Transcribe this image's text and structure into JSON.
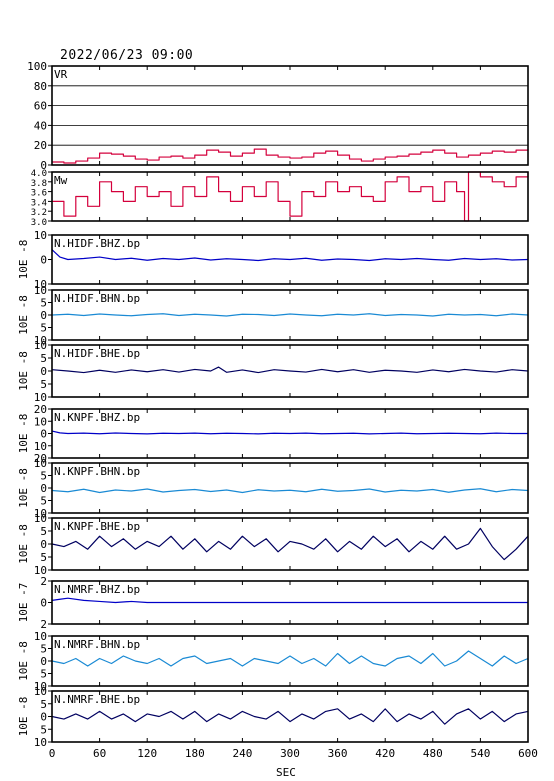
{
  "header": {
    "title": "2022/06/23 09:00"
  },
  "xaxis": {
    "label": "SEC",
    "ticks": [
      "0",
      "60",
      "120",
      "180",
      "240",
      "300",
      "360",
      "420",
      "480",
      "540",
      "600"
    ],
    "range": [
      0,
      600
    ]
  },
  "colors": {
    "red": "#d4003c",
    "blue": "#0000c8",
    "lightblue": "#1a8ad4",
    "navy": "#000060"
  },
  "chart_data": [
    {
      "type": "line",
      "id": "vr",
      "title": "VR",
      "ylim": [
        0,
        100
      ],
      "yticks": [
        0,
        20,
        40,
        60,
        80,
        100
      ],
      "ytick_labels": [
        "0",
        "20",
        "40",
        "60",
        "80",
        "100"
      ],
      "grid": true,
      "color": "#d4003c",
      "x": [
        0,
        15,
        30,
        45,
        60,
        75,
        90,
        105,
        120,
        135,
        150,
        165,
        180,
        195,
        210,
        225,
        240,
        255,
        270,
        285,
        300,
        315,
        330,
        345,
        360,
        375,
        390,
        405,
        420,
        435,
        450,
        465,
        480,
        495,
        510,
        525,
        540,
        555,
        570,
        585,
        600
      ],
      "values": [
        3,
        2,
        4,
        7,
        12,
        11,
        9,
        6,
        5,
        8,
        9,
        7,
        10,
        15,
        13,
        9,
        12,
        16,
        10,
        8,
        7,
        8,
        12,
        14,
        10,
        6,
        4,
        6,
        8,
        9,
        11,
        13,
        15,
        12,
        8,
        10,
        12,
        14,
        13,
        15,
        16
      ]
    },
    {
      "type": "line",
      "id": "mw",
      "title": "Mw",
      "ylim": [
        3.0,
        4.0
      ],
      "yticks": [
        3.0,
        3.2,
        3.4,
        3.6,
        3.8,
        4.0
      ],
      "ytick_labels": [
        "3.0",
        "3.2",
        "3.4",
        "3.6",
        "3.8",
        "4.0"
      ],
      "grid": false,
      "color": "#d4003c",
      "x": [
        0,
        15,
        30,
        45,
        60,
        75,
        90,
        105,
        120,
        135,
        150,
        165,
        180,
        195,
        210,
        225,
        240,
        255,
        270,
        285,
        300,
        315,
        330,
        345,
        360,
        375,
        390,
        405,
        420,
        435,
        450,
        465,
        480,
        495,
        510,
        520,
        525,
        540,
        555,
        570,
        585,
        600
      ],
      "values": [
        3.4,
        3.1,
        3.5,
        3.3,
        3.8,
        3.6,
        3.4,
        3.7,
        3.5,
        3.6,
        3.3,
        3.7,
        3.5,
        3.9,
        3.6,
        3.4,
        3.7,
        3.5,
        3.8,
        3.4,
        3.1,
        3.6,
        3.5,
        3.8,
        3.6,
        3.7,
        3.5,
        3.4,
        3.8,
        3.9,
        3.6,
        3.7,
        3.4,
        3.8,
        3.6,
        3.0,
        4.0,
        3.9,
        3.8,
        3.7,
        3.9,
        4.0
      ]
    },
    {
      "type": "line",
      "id": "hidf_bhz",
      "title": "N.HIDF.BHZ.bp",
      "ylabel": "10E -8",
      "ylim": [
        -10,
        10
      ],
      "yticks": [
        -10,
        0,
        10
      ],
      "ytick_labels": [
        "10",
        "0",
        "10"
      ],
      "color": "#0000c8",
      "x": [
        0,
        10,
        20,
        40,
        60,
        80,
        100,
        120,
        140,
        160,
        180,
        200,
        220,
        240,
        260,
        280,
        300,
        320,
        340,
        360,
        380,
        400,
        420,
        440,
        460,
        480,
        500,
        520,
        540,
        560,
        580,
        600
      ],
      "values": [
        4,
        1,
        0,
        0.4,
        1,
        0,
        0.5,
        -0.3,
        0.4,
        0,
        0.6,
        -0.2,
        0.3,
        0,
        -0.4,
        0.3,
        0,
        0.5,
        -0.3,
        0.2,
        0,
        -0.4,
        0.3,
        0,
        0.4,
        0,
        -0.3,
        0.4,
        0,
        0.3,
        -0.2,
        0
      ]
    },
    {
      "type": "line",
      "id": "hidf_bhn",
      "title": "N.HIDF.BHN.bp",
      "ylabel": "10E -8",
      "ylim": [
        -10,
        10
      ],
      "yticks": [
        -10,
        -5,
        0,
        5,
        10
      ],
      "ytick_labels": [
        "10",
        "5",
        "0",
        "5",
        "10"
      ],
      "color": "#1a8ad4",
      "x": [
        0,
        20,
        40,
        60,
        80,
        100,
        120,
        140,
        160,
        180,
        200,
        220,
        240,
        260,
        280,
        300,
        320,
        340,
        360,
        380,
        400,
        420,
        440,
        460,
        480,
        500,
        520,
        540,
        560,
        580,
        600
      ],
      "values": [
        0,
        0.3,
        -0.2,
        0.4,
        0,
        -0.3,
        0.2,
        0.5,
        -0.2,
        0.3,
        0,
        -0.4,
        0.3,
        0.2,
        -0.2,
        0.4,
        0,
        -0.3,
        0.3,
        0,
        0.5,
        -0.2,
        0.2,
        0,
        -0.4,
        0.3,
        0,
        0.2,
        -0.3,
        0.4,
        0
      ]
    },
    {
      "type": "line",
      "id": "hidf_bhe",
      "title": "N.HIDF.BHE.bp",
      "ylabel": "10E -8",
      "ylim": [
        -10,
        10
      ],
      "yticks": [
        -10,
        -5,
        0,
        5,
        10
      ],
      "ytick_labels": [
        "10",
        "5",
        "0",
        "5",
        "10"
      ],
      "color": "#000060",
      "x": [
        0,
        20,
        40,
        60,
        80,
        100,
        120,
        140,
        160,
        180,
        200,
        210,
        220,
        240,
        260,
        280,
        300,
        320,
        340,
        360,
        380,
        400,
        420,
        440,
        460,
        480,
        500,
        520,
        540,
        560,
        580,
        600
      ],
      "values": [
        0.5,
        0,
        -0.6,
        0.3,
        -0.5,
        0.4,
        -0.3,
        0.5,
        -0.4,
        0.6,
        0,
        1.5,
        -0.5,
        0.4,
        -0.6,
        0.5,
        0,
        -0.4,
        0.6,
        -0.3,
        0.5,
        -0.5,
        0.3,
        0,
        -0.5,
        0.4,
        -0.3,
        0.6,
        0,
        -0.4,
        0.5,
        0
      ]
    },
    {
      "type": "line",
      "id": "knpf_bhz",
      "title": "N.KNPF.BHZ.bp",
      "ylabel": "10E -8",
      "ylim": [
        -20,
        20
      ],
      "yticks": [
        -20,
        -10,
        0,
        10,
        20
      ],
      "ytick_labels": [
        "20",
        "10",
        "0",
        "10",
        "20"
      ],
      "color": "#0000c8",
      "x": [
        0,
        10,
        20,
        40,
        60,
        80,
        100,
        120,
        140,
        160,
        180,
        200,
        220,
        240,
        260,
        280,
        300,
        320,
        340,
        360,
        380,
        400,
        420,
        440,
        460,
        480,
        500,
        520,
        540,
        560,
        580,
        600
      ],
      "values": [
        2,
        0.5,
        0,
        0.3,
        -0.2,
        0.4,
        0,
        -0.3,
        0.2,
        0,
        0.3,
        -0.2,
        0.2,
        0,
        -0.3,
        0.2,
        0,
        0.3,
        -0.2,
        0,
        0.2,
        -0.3,
        0,
        0.3,
        -0.2,
        0,
        0.2,
        0,
        -0.2,
        0.3,
        0,
        0
      ]
    },
    {
      "type": "line",
      "id": "knpf_bhn",
      "title": "N.KNPF.BHN.bp",
      "ylabel": "10E -8",
      "ylim": [
        -10,
        10
      ],
      "yticks": [
        -10,
        -5,
        0,
        5,
        10
      ],
      "ytick_labels": [
        "10",
        "5",
        "0",
        "5",
        "10"
      ],
      "color": "#1a8ad4",
      "x": [
        0,
        20,
        40,
        60,
        80,
        100,
        120,
        140,
        160,
        180,
        200,
        220,
        240,
        260,
        280,
        300,
        320,
        340,
        360,
        380,
        400,
        420,
        440,
        460,
        480,
        500,
        520,
        540,
        560,
        580,
        600
      ],
      "values": [
        -1,
        -1.5,
        -0.5,
        -1.8,
        -0.8,
        -1.2,
        -0.4,
        -1.6,
        -1,
        -0.6,
        -1.4,
        -0.8,
        -1.8,
        -0.7,
        -1.2,
        -0.9,
        -1.5,
        -0.5,
        -1.3,
        -1,
        -0.4,
        -1.6,
        -0.9,
        -1.2,
        -0.6,
        -1.7,
        -0.8,
        -0.3,
        -1.5,
        -0.6,
        -1
      ]
    },
    {
      "type": "line",
      "id": "knpf_bhe",
      "title": "N.KNPF.BHE.bp",
      "ylabel": "10E -8",
      "ylim": [
        -10,
        10
      ],
      "yticks": [
        -10,
        -5,
        0,
        5,
        10
      ],
      "ytick_labels": [
        "10",
        "5",
        "0",
        "5",
        "10"
      ],
      "color": "#000060",
      "x": [
        0,
        15,
        30,
        45,
        60,
        75,
        90,
        105,
        120,
        135,
        150,
        165,
        180,
        195,
        210,
        225,
        240,
        255,
        270,
        285,
        300,
        315,
        330,
        345,
        360,
        375,
        390,
        405,
        420,
        435,
        450,
        465,
        480,
        495,
        510,
        525,
        540,
        555,
        570,
        585,
        600
      ],
      "values": [
        0,
        -1,
        1,
        -2,
        3,
        -1,
        2,
        -2,
        1,
        -1,
        3,
        -2,
        2,
        -3,
        1,
        -2,
        3,
        -1,
        2,
        -3,
        1,
        0,
        -2,
        2,
        -3,
        1,
        -2,
        3,
        -1,
        2,
        -3,
        1,
        -2,
        3,
        -2,
        0,
        6,
        -1,
        -6,
        -2,
        3
      ]
    },
    {
      "type": "line",
      "id": "nmrf_bhz",
      "title": "N.NMRF.BHZ.bp",
      "ylabel": "10E -7",
      "ylim": [
        -2,
        2
      ],
      "yticks": [
        -2,
        0,
        2
      ],
      "ytick_labels": [
        "2",
        "0",
        "2"
      ],
      "color": "#0000c8",
      "x": [
        0,
        10,
        20,
        40,
        60,
        80,
        100,
        120,
        140,
        160,
        180,
        200,
        220,
        240,
        260,
        280,
        300,
        320,
        340,
        360,
        380,
        400,
        420,
        440,
        460,
        480,
        500,
        520,
        540,
        560,
        580,
        600
      ],
      "values": [
        0.2,
        0.3,
        0.4,
        0.2,
        0.1,
        0,
        0.1,
        0,
        0,
        0,
        0,
        0,
        0,
        0,
        0,
        0,
        0,
        0,
        0,
        0,
        0,
        0,
        0,
        0,
        0,
        0,
        0,
        0,
        0,
        0,
        0,
        0
      ]
    },
    {
      "type": "line",
      "id": "nmrf_bhn",
      "title": "N.NMRF.BHN.bp",
      "ylabel": "10E -8",
      "ylim": [
        -10,
        10
      ],
      "yticks": [
        -10,
        -5,
        0,
        5,
        10
      ],
      "ytick_labels": [
        "10",
        "5",
        "0",
        "5",
        "10"
      ],
      "color": "#1a8ad4",
      "x": [
        0,
        15,
        30,
        45,
        60,
        75,
        90,
        105,
        120,
        135,
        150,
        165,
        180,
        195,
        210,
        225,
        240,
        255,
        270,
        285,
        300,
        315,
        330,
        345,
        360,
        375,
        390,
        405,
        420,
        435,
        450,
        465,
        480,
        495,
        510,
        525,
        540,
        555,
        570,
        585,
        600
      ],
      "values": [
        0,
        -1,
        1,
        -2,
        1,
        -1,
        2,
        0,
        -1,
        1,
        -2,
        1,
        2,
        -1,
        0,
        1,
        -2,
        1,
        0,
        -1,
        2,
        -1,
        1,
        -2,
        3,
        -1,
        2,
        -1,
        -2,
        1,
        2,
        -1,
        3,
        -2,
        0,
        4,
        1,
        -2,
        2,
        -1,
        1
      ]
    },
    {
      "type": "line",
      "id": "nmrf_bhe",
      "title": "N.NMRF.BHE.bp",
      "ylabel": "10E -8",
      "ylim": [
        -10,
        10
      ],
      "yticks": [
        -10,
        -5,
        0,
        5,
        10
      ],
      "ytick_labels": [
        "10",
        "5",
        "0",
        "5",
        "10"
      ],
      "color": "#000060",
      "x": [
        0,
        15,
        30,
        45,
        60,
        75,
        90,
        105,
        120,
        135,
        150,
        165,
        180,
        195,
        210,
        225,
        240,
        255,
        270,
        285,
        300,
        315,
        330,
        345,
        360,
        375,
        390,
        405,
        420,
        435,
        450,
        465,
        480,
        495,
        510,
        525,
        540,
        555,
        570,
        585,
        600
      ],
      "values": [
        0,
        -1,
        1,
        -1,
        2,
        -1,
        1,
        -2,
        1,
        0,
        2,
        -1,
        2,
        -2,
        1,
        -1,
        2,
        0,
        -1,
        2,
        -2,
        1,
        -1,
        2,
        3,
        -1,
        1,
        -2,
        3,
        -2,
        1,
        -1,
        2,
        -3,
        1,
        3,
        -1,
        2,
        -2,
        1,
        2
      ]
    }
  ]
}
